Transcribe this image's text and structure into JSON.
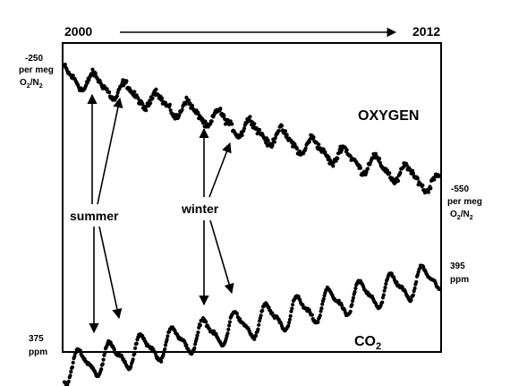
{
  "chart_data": {
    "type": "scatter",
    "time_range": {
      "start_label": "2000",
      "end_label": "2012",
      "start": 2000,
      "end": 2012
    },
    "annotations": {
      "summer": "summer",
      "winter": "winter"
    },
    "series": [
      {
        "name": "OXYGEN",
        "unit_top": {
          "value": "-250",
          "line2": "per meg",
          "ratio": "O2/N2"
        },
        "unit_bottom": {
          "value": "-550",
          "line2": "per meg",
          "ratio": "O2/N2"
        },
        "ylim": [
          -550,
          -250
        ],
        "trend_start": -275,
        "trend_slope_per_year": -19,
        "seasonal_amplitude": 18,
        "noise": 10
      },
      {
        "name": "CO2",
        "label_main": "CO",
        "label_sub": "2",
        "unit_bottom": {
          "value": "375",
          "line2": "ppm"
        },
        "unit_top": {
          "value": "395",
          "line2": "ppm"
        },
        "ylim": [
          375,
          395
        ],
        "trend_start": 369,
        "trend_slope_per_year": 2.0,
        "seasonal_amplitude": 3.5,
        "noise": 0.6
      }
    ]
  },
  "labels": {
    "o2_n2_main_O": "O",
    "o2_n2_sub_2a": "2",
    "o2_n2_slash_N": "/N",
    "o2_n2_sub_2b": "2"
  }
}
